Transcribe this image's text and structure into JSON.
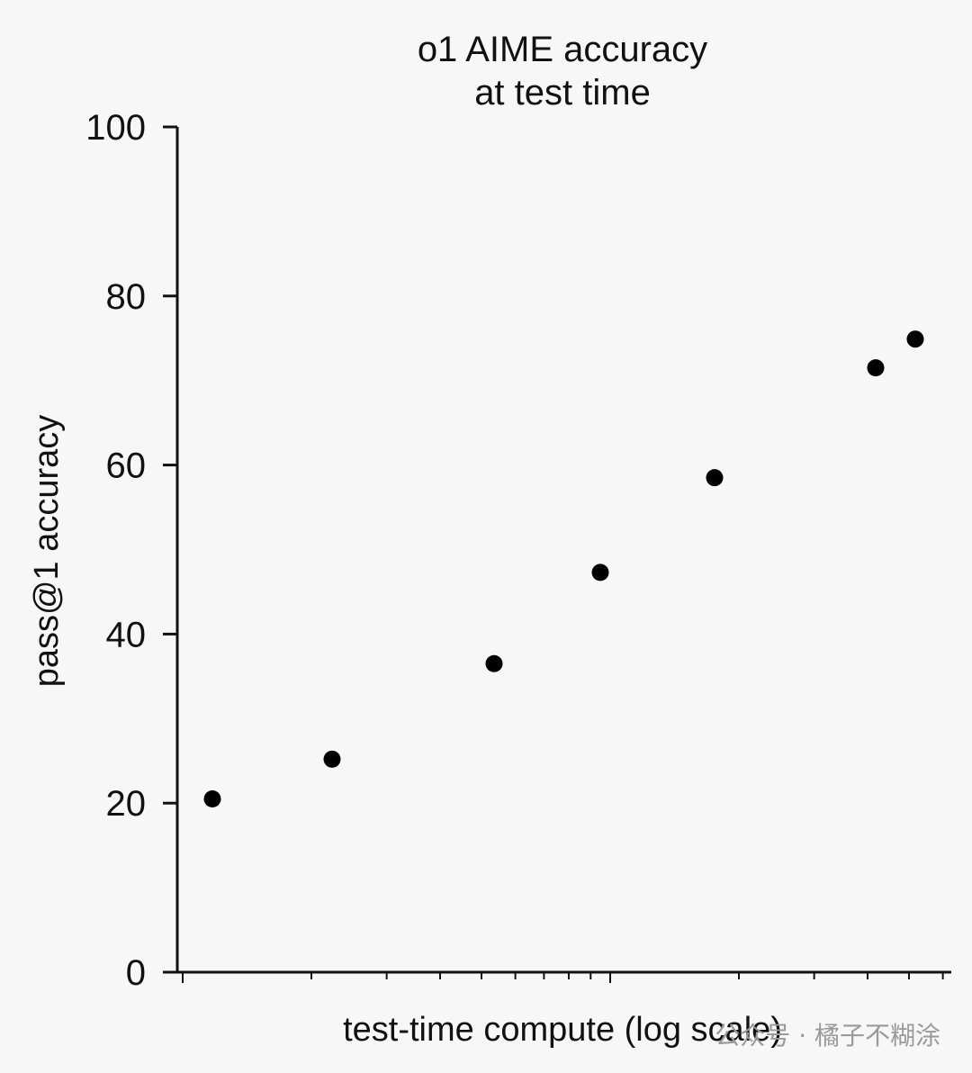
{
  "chart_data": {
    "type": "scatter",
    "title": [
      "o1 AIME accuracy",
      "at test time"
    ],
    "xlabel": "test-time compute (log scale)",
    "ylabel": "pass@1 accuracy",
    "xscale": "log",
    "x_tick_labels": "none",
    "ylim": [
      0,
      100
    ],
    "y_ticks": [
      0,
      20,
      40,
      60,
      80,
      100
    ],
    "y_tick_labels": [
      "0",
      "20",
      "40",
      "60",
      "80",
      "100"
    ],
    "grid": false,
    "legend": "none",
    "marker_color": "#000000",
    "points": [
      {
        "x": 1,
        "y": 20.5
      },
      {
        "x": 2,
        "y": 25.2
      },
      {
        "x": 3,
        "y": 36.5
      },
      {
        "x": 4,
        "y": 47.3
      },
      {
        "x": 5,
        "y": 58.5
      },
      {
        "x": 6,
        "y": 71.5
      },
      {
        "x": 7,
        "y": 74.9
      }
    ]
  },
  "watermark": "公众号 · 橘子不糊涂"
}
